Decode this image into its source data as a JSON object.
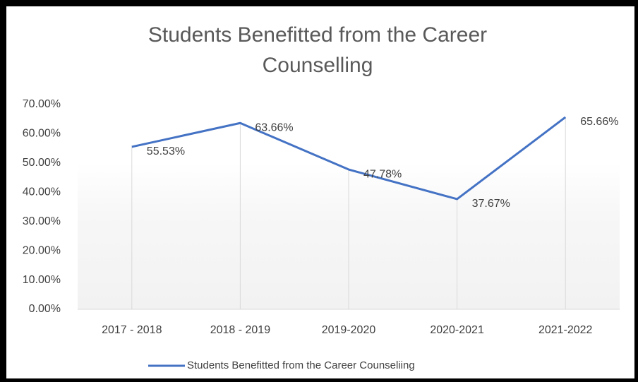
{
  "chart_data": {
    "type": "line",
    "title": "Students Benefitted from the Career Counselling",
    "categories": [
      "2017 - 2018",
      "2018 - 2019",
      "2019-2020",
      "2020-2021",
      "2021-2022"
    ],
    "series": [
      {
        "name": "Students Benefitted from the Career Counseliing",
        "color": "#4472c4",
        "values": [
          55.53,
          63.66,
          47.78,
          37.67,
          65.66
        ],
        "value_labels": [
          "55.53%",
          "63.66%",
          "47.78%",
          "37.67%",
          "65.66%"
        ]
      }
    ],
    "ylim": [
      0,
      70
    ],
    "yticks": [
      {
        "value": 0,
        "label": "0.00%"
      },
      {
        "value": 10,
        "label": "10.00%"
      },
      {
        "value": 20,
        "label": "20.00%"
      },
      {
        "value": 30,
        "label": "30.00%"
      },
      {
        "value": 40,
        "label": "40.00%"
      },
      {
        "value": 50,
        "label": "50.00%"
      },
      {
        "value": 60,
        "label": "60.00%"
      },
      {
        "value": 70,
        "label": "70.00%"
      }
    ],
    "grid": false,
    "legend": "bottom"
  }
}
